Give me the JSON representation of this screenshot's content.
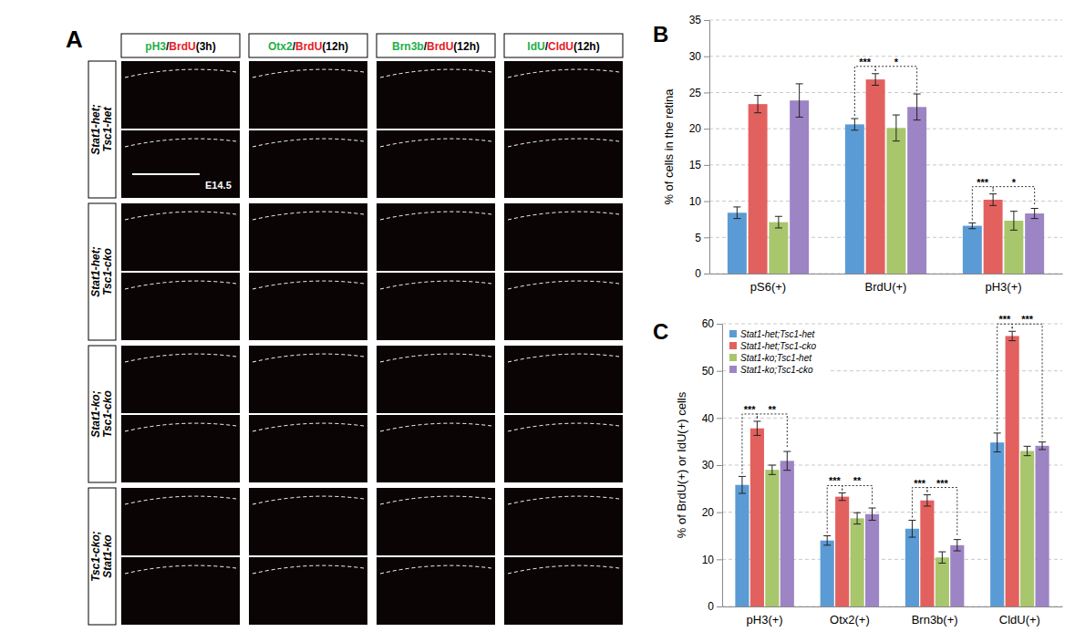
{
  "images": {
    "label": "A",
    "columns": [
      {
        "parts": [
          {
            "text": "pH3",
            "color": "#22b04b"
          },
          {
            "text": "/",
            "color": "#000000"
          },
          {
            "text": "BrdU",
            "color": "#e8201f"
          },
          {
            "text": "(3h)",
            "color": "#000000"
          }
        ]
      },
      {
        "parts": [
          {
            "text": "Otx2",
            "color": "#22b04b"
          },
          {
            "text": "/",
            "color": "#000000"
          },
          {
            "text": "BrdU",
            "color": "#e8201f"
          },
          {
            "text": "(12h)",
            "color": "#000000"
          }
        ]
      },
      {
        "parts": [
          {
            "text": "Brn3b",
            "color": "#22b04b"
          },
          {
            "text": "/",
            "color": "#000000"
          },
          {
            "text": "BrdU",
            "color": "#e8201f"
          },
          {
            "text": "(12h)",
            "color": "#000000"
          }
        ]
      },
      {
        "parts": [
          {
            "text": "IdU",
            "color": "#22b04b"
          },
          {
            "text": "/",
            "color": "#000000"
          },
          {
            "text": "CldU",
            "color": "#e8201f"
          },
          {
            "text": "(12h)",
            "color": "#000000"
          }
        ]
      }
    ],
    "rows": [
      {
        "lines": [
          "Stat1-het;",
          "Tsc1-het"
        ]
      },
      {
        "lines": [
          "Stat1-het;",
          "Tsc1-cko"
        ]
      },
      {
        "lines": [
          "Stat1-ko;",
          "Tsc1-cko"
        ]
      },
      {
        "lines": [
          "Tsc1-cko;",
          "Stat1-ko"
        ]
      }
    ],
    "stage": "E14.5"
  },
  "chart_data": [
    {
      "type": "bar",
      "label": "B",
      "ylabel": "% of cells in the retina",
      "categories": [
        "pS6(+)",
        "BrdU(+)",
        "pH3(+)"
      ],
      "series": [
        {
          "color": "#5b9bd5",
          "values": [
            8.4,
            20.6,
            6.6
          ],
          "errors": [
            0.8,
            0.8,
            0.4
          ]
        },
        {
          "color": "#e2615f",
          "values": [
            23.4,
            26.8,
            10.2
          ],
          "errors": [
            1.2,
            0.8,
            0.8
          ]
        },
        {
          "color": "#a8c66c",
          "values": [
            7.1,
            20.1,
            7.3
          ],
          "errors": [
            0.8,
            1.8,
            1.3
          ]
        },
        {
          "color": "#9d84c4",
          "values": [
            23.9,
            23.0,
            8.3
          ],
          "errors": [
            2.3,
            1.8,
            0.7
          ]
        }
      ],
      "ylim": [
        0,
        35
      ],
      "yticks": [
        0,
        5,
        10,
        15,
        20,
        25,
        30,
        35
      ],
      "grid": true,
      "annotations": [
        {
          "text": "***",
          "category": "BrdU(+)",
          "between": [
            0,
            1
          ]
        },
        {
          "text": "*",
          "category": "BrdU(+)",
          "between": [
            1,
            3
          ]
        },
        {
          "text": "***",
          "category": "pH3(+)",
          "between": [
            0,
            1
          ]
        },
        {
          "text": "*",
          "category": "pH3(+)",
          "between": [
            1,
            3
          ]
        }
      ]
    },
    {
      "type": "bar",
      "label": "C",
      "ylabel": "% of BrdU(+) or IdU(+) cells",
      "categories": [
        "pH3(+)",
        "Otx2(+)",
        "Brn3b(+)",
        "CldU(+)"
      ],
      "series": [
        {
          "name": "Stat1-het;Tsc1-het",
          "color": "#5b9bd5",
          "values": [
            25.8,
            14.0,
            16.5,
            34.8
          ],
          "errors": [
            1.8,
            1.0,
            1.8,
            2.0
          ]
        },
        {
          "name": "Stat1-het;Tsc1-cko",
          "color": "#e2615f",
          "values": [
            37.8,
            23.3,
            22.5,
            57.4
          ],
          "errors": [
            1.5,
            0.8,
            1.2,
            1.0
          ]
        },
        {
          "name": "Stat1-ko;Tsc1-het",
          "color": "#a8c66c",
          "values": [
            29.0,
            18.7,
            10.4,
            33.0
          ],
          "errors": [
            1.0,
            1.2,
            1.2,
            1.0
          ]
        },
        {
          "name": "Stat1-ko;Tsc1-cko",
          "color": "#9d84c4",
          "values": [
            30.9,
            19.6,
            13.0,
            34.1
          ],
          "errors": [
            2.0,
            1.3,
            1.2,
            0.8
          ]
        }
      ],
      "ylim": [
        0,
        60
      ],
      "yticks": [
        0,
        10,
        20,
        30,
        40,
        50,
        60
      ],
      "grid": true,
      "legend": "top-left",
      "annotations": [
        {
          "text": "***",
          "category": "pH3(+)",
          "between": [
            0,
            1
          ]
        },
        {
          "text": "**",
          "category": "pH3(+)",
          "between": [
            1,
            3
          ]
        },
        {
          "text": "***",
          "category": "Otx2(+)",
          "between": [
            0,
            1
          ]
        },
        {
          "text": "**",
          "category": "Otx2(+)",
          "between": [
            1,
            3
          ]
        },
        {
          "text": "***",
          "category": "Brn3b(+)",
          "between": [
            0,
            1
          ]
        },
        {
          "text": "***",
          "category": "Brn3b(+)",
          "between": [
            1,
            3
          ]
        },
        {
          "text": "***",
          "category": "CldU(+)",
          "between": [
            0,
            1
          ]
        },
        {
          "text": "***",
          "category": "CldU(+)",
          "between": [
            1,
            3
          ]
        }
      ]
    }
  ]
}
